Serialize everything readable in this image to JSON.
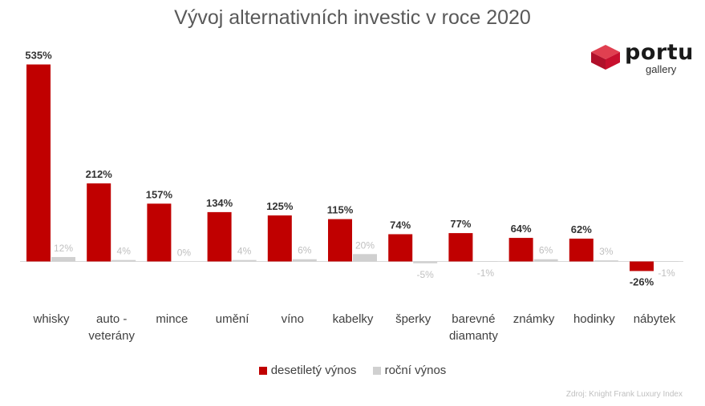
{
  "chart_data": {
    "type": "bar",
    "title": "Vývoj alternativních investic v roce 2020",
    "categories": [
      [
        "whisky"
      ],
      [
        "auto -",
        "veterány"
      ],
      [
        "mince"
      ],
      [
        "umění"
      ],
      [
        "víno"
      ],
      [
        "kabelky"
      ],
      [
        "šperky"
      ],
      [
        "barevné",
        "diamanty"
      ],
      [
        "známky"
      ],
      [
        "hodinky"
      ],
      [
        "nábytek"
      ]
    ],
    "series": [
      {
        "name": "desetiletý výnos",
        "color": "#c00000",
        "values": [
          535,
          212,
          157,
          134,
          125,
          115,
          74,
          77,
          64,
          62,
          -26
        ],
        "labels": [
          "535%",
          "212%",
          "157%",
          "134%",
          "125%",
          "115%",
          "74%",
          "77%",
          "64%",
          "62%",
          "-26%"
        ]
      },
      {
        "name": "roční výnos",
        "color": "#d0d0d0",
        "values": [
          12,
          4,
          0,
          4,
          6,
          20,
          -5,
          -1,
          6,
          3,
          -1
        ],
        "labels": [
          "12%",
          "4%",
          "0%",
          "4%",
          "6%",
          "20%",
          "-5%",
          "-1%",
          "6%",
          "3%",
          "-1%"
        ]
      }
    ],
    "legend_position": "bottom",
    "grid": false,
    "source": "Zdroj: Knight Frank Luxury Index"
  },
  "logo": {
    "brand": "portu",
    "sub": "gallery",
    "color": "#c8102e"
  }
}
